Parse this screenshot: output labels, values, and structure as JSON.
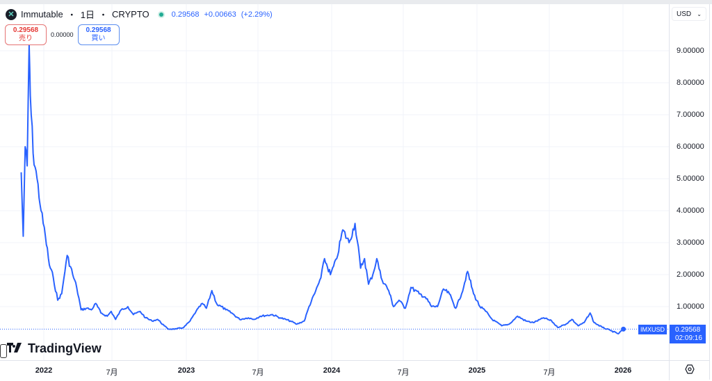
{
  "header": {
    "symbol_name": "Immutable",
    "interval": "1日",
    "exchange": "CRYPTO",
    "separator": "・",
    "last_price": "0.29568",
    "change": "+0.00663",
    "change_pct": "(+2.29%)",
    "symbol_icon": "x-logo-icon",
    "market_status_icon": "live-dot-icon"
  },
  "trade": {
    "sell_price": "0.29568",
    "sell_label": "売り",
    "spread": "0.00000",
    "buy_price": "0.29568",
    "buy_label": "買い"
  },
  "currency": {
    "selected": "USD",
    "icon": "chevron-down-icon"
  },
  "price_label": {
    "symbol": "IMXUSD",
    "price": "0.29568",
    "countdown": "02:09:16"
  },
  "branding": {
    "logo_text": "TradingView",
    "logo_mark": "TV"
  },
  "colors": {
    "line": "#2962ff",
    "sell": "#e53935",
    "buy": "#2962ff",
    "grid": "#f0f3fa"
  },
  "chart_data": {
    "type": "line",
    "title": "Immutable · 1日 · CRYPTO (IMXUSD)",
    "xlabel": "",
    "ylabel": "USD",
    "ylim": [
      0,
      9.6
    ],
    "grid": true,
    "legend_position": "top-left",
    "x_tick_labels": [
      "2022",
      "7月",
      "2023",
      "7月",
      "2024",
      "7月",
      "2025",
      "7月",
      "2026"
    ],
    "y_tick_labels": [
      "1.00000",
      "2.00000",
      "3.00000",
      "4.00000",
      "5.00000",
      "6.00000",
      "7.00000",
      "8.00000",
      "9.00000"
    ],
    "series": [
      {
        "name": "IMXUSD",
        "x": [
          "2021-11-05",
          "2021-11-10",
          "2021-11-15",
          "2021-11-20",
          "2021-11-25",
          "2021-11-28",
          "2021-12-05",
          "2021-12-15",
          "2021-12-25",
          "2022-01-05",
          "2022-01-15",
          "2022-01-25",
          "2022-02-05",
          "2022-02-15",
          "2022-03-01",
          "2022-03-15",
          "2022-03-25",
          "2022-04-05",
          "2022-04-20",
          "2022-05-01",
          "2022-05-12",
          "2022-05-25",
          "2022-06-10",
          "2022-06-20",
          "2022-07-01",
          "2022-07-15",
          "2022-08-01",
          "2022-08-15",
          "2022-09-01",
          "2022-09-15",
          "2022-10-01",
          "2022-10-15",
          "2022-11-01",
          "2022-11-10",
          "2022-12-01",
          "2022-12-20",
          "2023-01-05",
          "2023-01-20",
          "2023-02-05",
          "2023-02-15",
          "2023-03-01",
          "2023-03-15",
          "2023-03-25",
          "2023-04-05",
          "2023-04-20",
          "2023-05-10",
          "2023-06-01",
          "2023-06-15",
          "2023-07-01",
          "2023-08-01",
          "2023-08-20",
          "2023-09-15",
          "2023-10-01",
          "2023-10-20",
          "2023-11-01",
          "2023-11-15",
          "2023-12-01",
          "2023-12-10",
          "2023-12-25",
          "2024-01-10",
          "2024-01-25",
          "2024-02-10",
          "2024-02-25",
          "2024-03-10",
          "2024-03-20",
          "2024-03-30",
          "2024-04-10",
          "2024-04-20",
          "2024-05-01",
          "2024-05-20",
          "2024-06-01",
          "2024-06-15",
          "2024-07-01",
          "2024-07-15",
          "2024-08-05",
          "2024-08-20",
          "2024-09-05",
          "2024-09-20",
          "2024-10-05",
          "2024-10-20",
          "2024-11-05",
          "2024-11-20",
          "2024-12-05",
          "2024-12-20",
          "2025-01-05",
          "2025-01-20",
          "2025-02-05",
          "2025-03-01",
          "2025-03-20",
          "2025-04-10",
          "2025-05-01",
          "2025-05-20",
          "2025-06-15",
          "2025-07-05",
          "2025-07-20",
          "2025-08-10",
          "2025-08-25",
          "2025-09-10",
          "2025-09-25",
          "2025-10-10",
          "2025-10-20",
          "2025-11-10",
          "2025-12-01",
          "2025-12-20",
          "2026-01-02"
        ],
        "values": [
          5.2,
          3.2,
          6.0,
          5.4,
          9.2,
          7.6,
          5.8,
          5.0,
          4.0,
          3.2,
          2.3,
          1.9,
          1.2,
          1.4,
          2.6,
          2.0,
          1.6,
          0.9,
          0.95,
          0.9,
          1.1,
          0.8,
          0.7,
          0.85,
          0.6,
          0.9,
          1.0,
          0.75,
          0.85,
          0.65,
          0.55,
          0.6,
          0.4,
          0.3,
          0.3,
          0.35,
          0.55,
          0.85,
          1.1,
          0.95,
          1.5,
          1.05,
          1.0,
          0.9,
          0.8,
          0.6,
          0.65,
          0.6,
          0.7,
          0.75,
          0.65,
          0.55,
          0.45,
          0.55,
          1.0,
          1.4,
          1.9,
          2.5,
          2.0,
          2.5,
          3.4,
          3.0,
          3.6,
          2.2,
          2.5,
          1.7,
          2.0,
          2.5,
          1.9,
          1.5,
          1.0,
          1.2,
          0.95,
          1.6,
          1.4,
          1.3,
          1.0,
          1.0,
          1.55,
          1.4,
          0.95,
          1.4,
          2.1,
          1.4,
          1.0,
          0.85,
          0.6,
          0.4,
          0.45,
          0.7,
          0.55,
          0.5,
          0.65,
          0.55,
          0.35,
          0.45,
          0.6,
          0.4,
          0.5,
          0.8,
          0.5,
          0.35,
          0.25,
          0.15,
          0.29568
        ]
      }
    ],
    "last_value": 0.29568
  }
}
